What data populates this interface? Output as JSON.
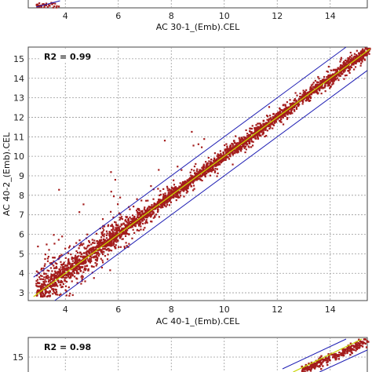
{
  "colors": {
    "points": "#a41d1d",
    "fit_line": "#c8d400",
    "bound_lines": "#1f1fb4",
    "grid": "#9a9a9a",
    "panel_border": "#444444"
  },
  "chart_data": [
    {
      "type": "scatter",
      "panel": "top (cropped)",
      "xlabel": "AC 30-1_(Emb).CEL",
      "ylabel": "",
      "r2_label": "",
      "x_ticks": [
        "4",
        "6",
        "8",
        "10",
        "12",
        "14"
      ],
      "y_ticks": [],
      "xlim": [
        2.6,
        15.4
      ],
      "grid": true
    },
    {
      "type": "scatter",
      "panel": "middle",
      "xlabel": "AC 40-1_(Emb).CEL",
      "ylabel": "AC 40-2_(Emb).CEL",
      "r2_label": "R2 = 0.99",
      "x_ticks": [
        "4",
        "6",
        "8",
        "10",
        "12",
        "14"
      ],
      "y_ticks": [
        "3",
        "4",
        "5",
        "6",
        "7",
        "8",
        "9",
        "10",
        "11",
        "12",
        "13",
        "14",
        "15"
      ],
      "xlim": [
        2.6,
        15.4
      ],
      "ylim": [
        2.6,
        15.6
      ],
      "grid": true,
      "fit_line": {
        "slope": 1.0,
        "intercept": 0.0
      },
      "bound_lines": [
        {
          "slope": 1.0,
          "intercept": 1.0
        },
        {
          "slope": 1.0,
          "intercept": -1.0
        }
      ],
      "series": [
        {
          "description_points": "dense cloud along y = x from about 3 to 15.5; scatter widens at low intensity (x 3–7)",
          "x_range": [
            2.8,
            15.5
          ],
          "y_range": [
            2.8,
            15.5
          ]
        }
      ]
    },
    {
      "type": "scatter",
      "panel": "bottom (cropped)",
      "xlabel": "",
      "ylabel": "",
      "r2_label": "R2 = 0.98",
      "x_ticks": [],
      "y_ticks": [
        "15"
      ],
      "grid": true
    }
  ]
}
